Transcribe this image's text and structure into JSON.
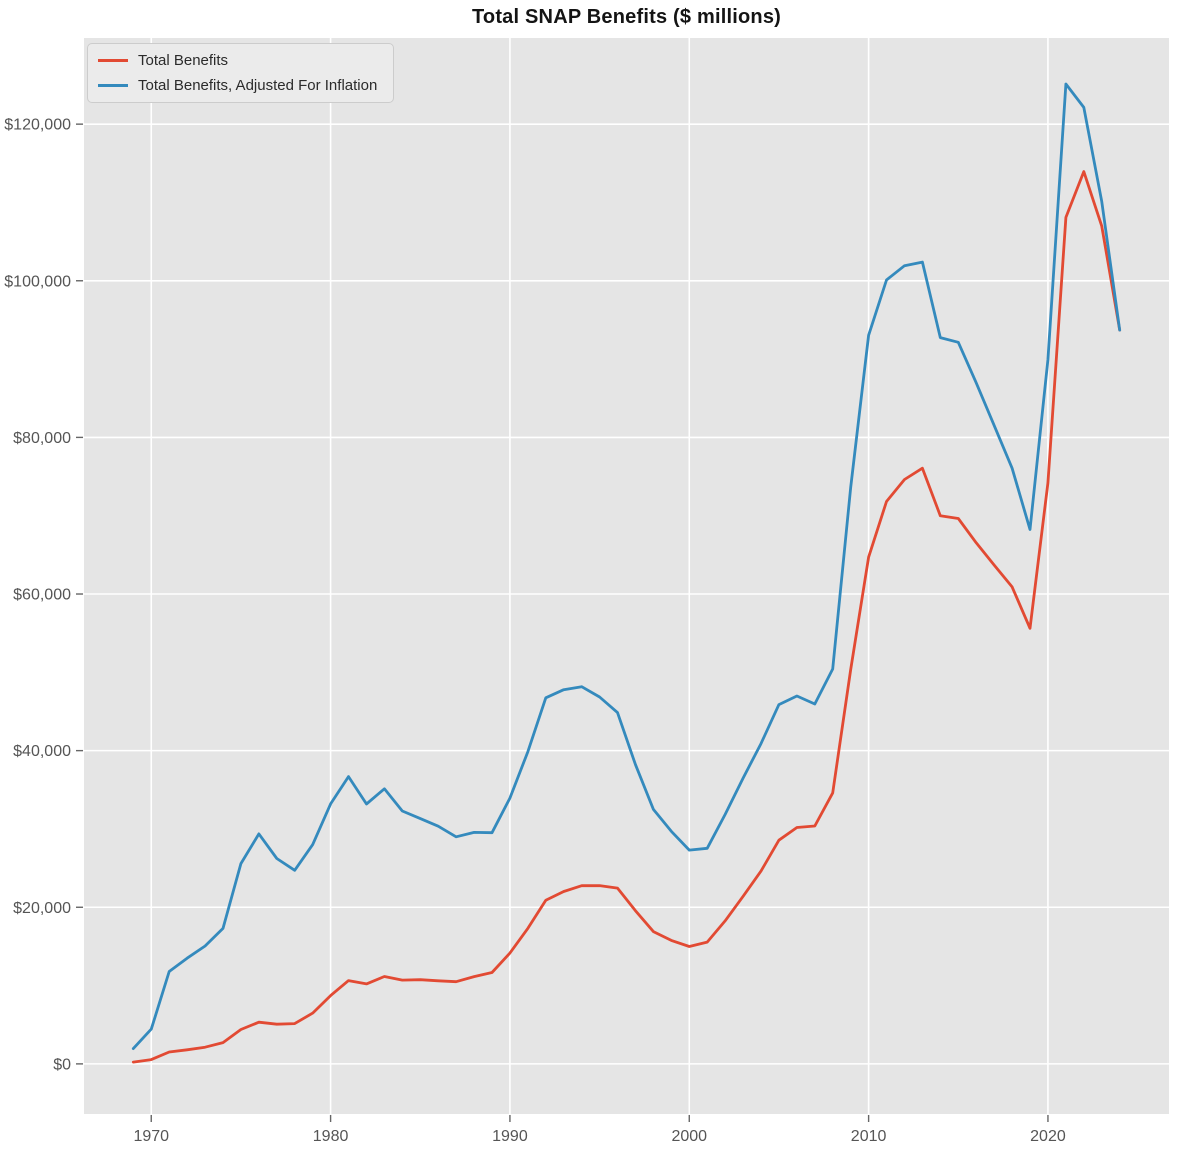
{
  "chart_data": {
    "type": "line",
    "title": "Total SNAP Benefits ($ millions)",
    "xlabel": "",
    "ylabel": "",
    "legend_position": "upper-left",
    "grid": true,
    "plot_bg_color": "#e5e5e5",
    "grid_color": "#ffffff",
    "tick_color": "#666666",
    "tick_label_color": "#555555",
    "xlim": [
      1966.25,
      2026.75
    ],
    "ylim": [
      -6400,
      131000
    ],
    "xticks": [
      1970,
      1980,
      1990,
      2000,
      2010,
      2020
    ],
    "xtick_labels": [
      "1970",
      "1980",
      "1990",
      "2000",
      "2010",
      "2020"
    ],
    "yticks": [
      0,
      20000,
      40000,
      60000,
      80000,
      100000,
      120000
    ],
    "ytick_labels": [
      "$0",
      "$20,000",
      "$40,000",
      "$60,000",
      "$80,000",
      "$100,000",
      "$120,000"
    ],
    "x": [
      1969,
      1970,
      1971,
      1972,
      1973,
      1974,
      1975,
      1976,
      1977,
      1978,
      1979,
      1980,
      1981,
      1982,
      1983,
      1984,
      1985,
      1986,
      1987,
      1988,
      1989,
      1990,
      1991,
      1992,
      1993,
      1994,
      1995,
      1996,
      1997,
      1998,
      1999,
      2000,
      2001,
      2002,
      2003,
      2004,
      2005,
      2006,
      2007,
      2008,
      2009,
      2010,
      2011,
      2012,
      2013,
      2014,
      2015,
      2016,
      2017,
      2018,
      2019,
      2020,
      2021,
      2022,
      2023,
      2024
    ],
    "series": [
      {
        "name": "Total Benefits",
        "color": "#e24a33",
        "values": [
          230,
          550,
          1523,
          1797,
          2131,
          2718,
          4386,
          5327,
          5067,
          5139,
          6480,
          8721,
          10630,
          10208,
          11152,
          10696,
          10744,
          10605,
          10500,
          11149,
          11670,
          14143,
          17316,
          20906,
          22006,
          22749,
          22764,
          22440,
          19549,
          16890,
          15769,
          14983,
          15547,
          18256,
          21404,
          24619,
          28568,
          30187,
          30373,
          34608,
          50360,
          64702,
          71811,
          74619,
          76066,
          69999,
          69646,
          66539,
          63711,
          60905,
          55617,
          74160,
          108095,
          113939,
          107000,
          93700
        ]
      },
      {
        "name": "Total Benefits, Adjusted For Inflation",
        "color": "#348abd",
        "values": [
          1956,
          4444,
          11794,
          13489,
          15058,
          17296,
          25572,
          29365,
          26232,
          24725,
          28001,
          33200,
          36684,
          33187,
          35130,
          32292,
          31318,
          30352,
          28991,
          29556,
          29525,
          33943,
          39878,
          46745,
          47775,
          48158,
          46849,
          44858,
          38199,
          32497,
          29694,
          27300,
          27534,
          31839,
          36494,
          40892,
          45880,
          46971,
          45955,
          50424,
          73626,
          93042,
          100104,
          101930,
          102385,
          92748,
          92141,
          86967,
          81550,
          76070,
          68242,
          89897,
          125131,
          122132,
          110157,
          93700
        ]
      }
    ]
  }
}
